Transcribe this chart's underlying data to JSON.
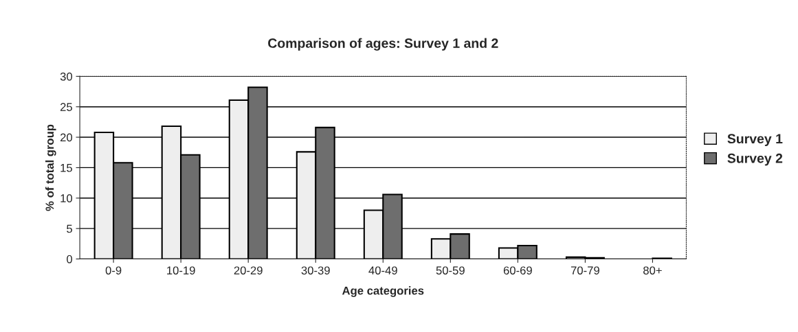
{
  "chart_data": {
    "type": "bar",
    "title": "Comparison of ages: Survey 1 and 2",
    "xlabel": "Age categories",
    "ylabel": "% of total group",
    "categories": [
      "0-9",
      "10-19",
      "20-29",
      "30-39",
      "40-49",
      "50-59",
      "60-69",
      "70-79",
      "80+"
    ],
    "series": [
      {
        "name": "Survey 1",
        "color": "#eeeeee",
        "values": [
          20.8,
          21.8,
          26.1,
          17.6,
          8.0,
          3.3,
          1.8,
          0.3,
          null
        ]
      },
      {
        "name": "Survey 2",
        "color": "#6e6e6e",
        "values": [
          15.8,
          17.1,
          28.2,
          21.6,
          10.6,
          4.1,
          2.2,
          0.2,
          0.1
        ]
      }
    ],
    "ylim": [
      0,
      30
    ],
    "yticks": [
      0,
      5,
      10,
      15,
      20,
      25,
      30
    ],
    "grid": "y",
    "legend": "right"
  }
}
